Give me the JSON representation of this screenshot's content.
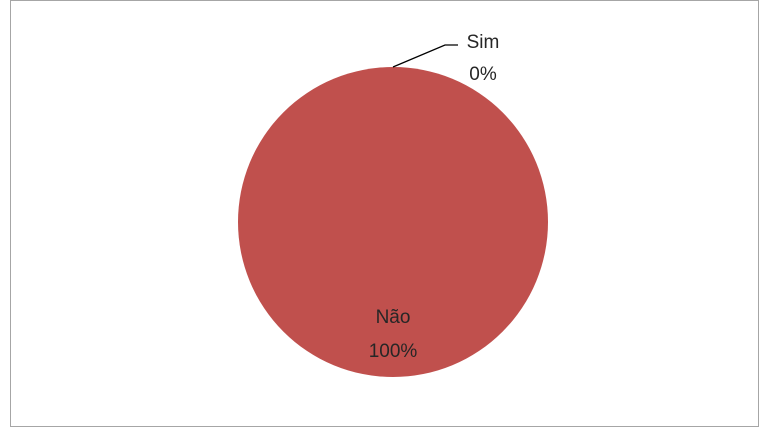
{
  "chart_data": {
    "type": "pie",
    "slices": [
      {
        "label": "Sim",
        "value": 0,
        "percent_label": "0%",
        "color": "#c0504d"
      },
      {
        "label": "Não",
        "value": 100,
        "percent_label": "100%",
        "color": "#c0504d"
      }
    ],
    "legend": "none",
    "leader_line_color": "#000000",
    "border_color": "#a6a6a6"
  }
}
